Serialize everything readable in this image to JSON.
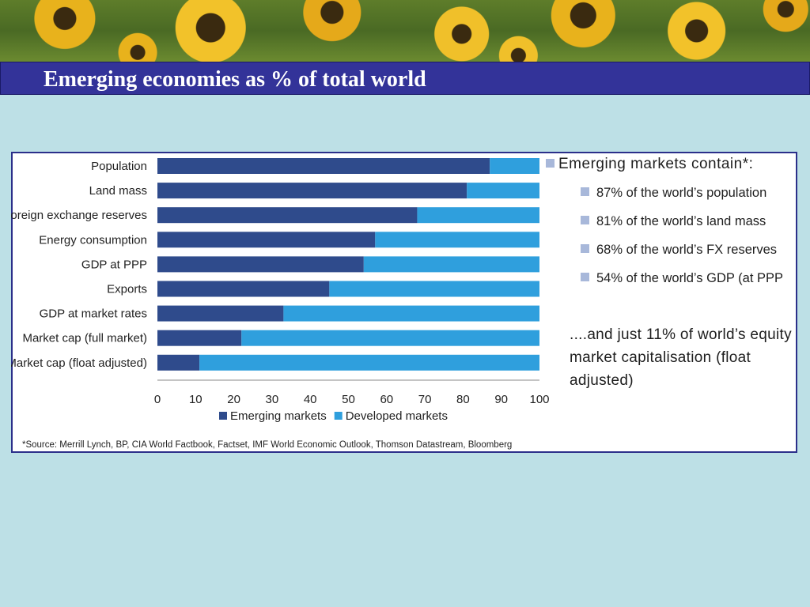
{
  "slide": {
    "title": "Emerging economies as % of total world"
  },
  "chart_data": {
    "type": "bar",
    "orientation": "horizontal",
    "stacked": true,
    "categories": [
      "Population",
      "Land mass",
      "Foreign exchange reserves",
      "Energy consumption",
      "GDP at PPP",
      "Exports",
      "GDP at market rates",
      "Market cap (full market)",
      "Market cap (float adjusted)"
    ],
    "series": [
      {
        "name": "Emerging markets",
        "color": "#2f4b8c",
        "values": [
          87,
          81,
          68,
          57,
          54,
          45,
          33,
          22,
          11
        ]
      },
      {
        "name": "Developed markets",
        "color": "#2f9fdd",
        "values": [
          13,
          19,
          32,
          43,
          46,
          55,
          67,
          78,
          89
        ]
      }
    ],
    "xlim": [
      0,
      100
    ],
    "xticks": [
      0,
      10,
      20,
      30,
      40,
      50,
      60,
      70,
      80,
      90,
      100
    ],
    "grid": false,
    "legend_position": "bottom"
  },
  "sidebar": {
    "heading": "Emerging markets contain*:",
    "items": [
      "87% of the world’s population",
      "81% of the world’s land mass",
      "68% of the world’s FX reserves",
      "54% of the world’s GDP (at PPP"
    ],
    "note": "....and just 11% of world’s equity market capitalisation (float adjusted)"
  },
  "source": "*Source: Merrill Lynch, BP, CIA World Factbook, Factset, IMF World Economic Outlook, Thomson Datastream, Bloomberg"
}
